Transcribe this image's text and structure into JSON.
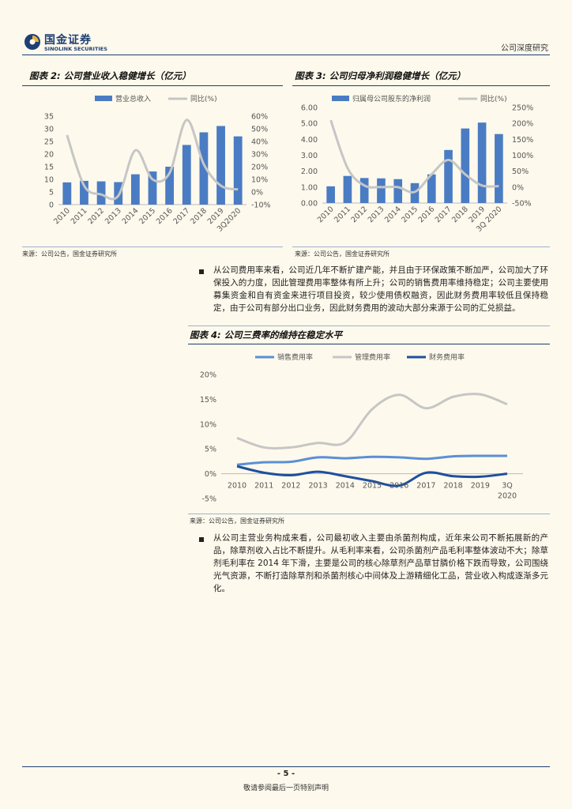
{
  "header": {
    "logo_cn": "国金证券",
    "logo_en": "SINOLINK SECURITIES",
    "right_text": "公司深度研究"
  },
  "fig2": {
    "title": "图表 2: 公司营业收入稳健增长（亿元）",
    "source": "来源：公司公告，国金证券研究所",
    "chart_data": {
      "type": "bar",
      "categories": [
        "2010",
        "2011",
        "2012",
        "2013",
        "2014",
        "2015",
        "2016",
        "2017",
        "2018",
        "2019",
        "3Q2020"
      ],
      "series": [
        {
          "name": "营业总收入",
          "kind": "bar",
          "axis": "left",
          "values": [
            8.8,
            9.4,
            9.2,
            8.9,
            12.0,
            13.1,
            15.0,
            23.6,
            28.6,
            31.1,
            27.0
          ]
        },
        {
          "name": "同比(%)",
          "kind": "line",
          "axis": "right",
          "values": [
            45,
            5,
            -2,
            -3,
            33,
            10,
            15,
            57,
            22,
            5,
            2
          ]
        }
      ],
      "ylim_left": [
        0,
        35
      ],
      "yticks_left": [
        "35",
        "30",
        "25",
        "20",
        "15",
        "10",
        "5",
        "0"
      ],
      "ylim_right": [
        -10,
        60
      ],
      "yticks_right": [
        "60%",
        "50%",
        "40%",
        "30%",
        "20%",
        "10%",
        "0%",
        "-10%"
      ],
      "colors": {
        "bar": "#4a7cc4",
        "line": "#c6c6c6"
      }
    }
  },
  "fig3": {
    "title": "图表 3: 公司归母净利润稳健增长（亿元）",
    "source": "来源：公司公告，国金证券研究所",
    "chart_data": {
      "type": "bar",
      "categories": [
        "2010",
        "2011",
        "2012",
        "2013",
        "2014",
        "2015",
        "2016",
        "2017",
        "2018",
        "2019",
        "3Q 2020"
      ],
      "series": [
        {
          "name": "归属母公司股东的净利润",
          "kind": "bar",
          "axis": "left",
          "values": [
            1.05,
            1.7,
            1.57,
            1.55,
            1.5,
            1.25,
            1.8,
            3.33,
            4.68,
            5.05,
            4.33
          ]
        },
        {
          "name": "同比(%)",
          "kind": "line",
          "axis": "right",
          "values": [
            210,
            60,
            5,
            0,
            0,
            -15,
            40,
            85,
            40,
            5,
            3
          ]
        }
      ],
      "ylim_left": [
        0,
        6
      ],
      "yticks_left": [
        "6.00",
        "5.00",
        "4.00",
        "3.00",
        "2.00",
        "1.00",
        "0.00"
      ],
      "ylim_right": [
        -50,
        250
      ],
      "yticks_right": [
        "250%",
        "200%",
        "150%",
        "100%",
        "50%",
        "0%",
        "-50%"
      ],
      "colors": {
        "bar": "#4a7cc4",
        "line": "#c6c6c6"
      }
    }
  },
  "bullet1": "从公司费用率来看，公司近几年不断扩建产能，并且由于环保政策不断加严，公司加大了环保投入的力度，因此管理费用率整体有所上升；公司的销售费用率维持稳定；公司主要使用募集资金和自有资金来进行项目投资，较少使用债权融资，因此财务费用率较低且保持稳定，由于公司有部分出口业务，因此财务费用的波动大部分来源于公司的汇兑损益。",
  "fig4": {
    "title": "图表 4: 公司三费率的维持在稳定水平",
    "source": "来源：公司公告，国金证券研究所",
    "chart_data": {
      "type": "line",
      "categories": [
        "2010",
        "2011",
        "2012",
        "2013",
        "2014",
        "2015",
        "2016",
        "2017",
        "2018",
        "2019",
        "3Q 2020"
      ],
      "series": [
        {
          "name": "销售费用率",
          "values": [
            1.8,
            2.3,
            2.4,
            3.3,
            3.1,
            3.4,
            3.3,
            3.0,
            3.5,
            3.6,
            3.6
          ]
        },
        {
          "name": "管理费用率",
          "values": [
            7.2,
            5.3,
            5.3,
            6.2,
            6.3,
            13.0,
            15.9,
            13.2,
            15.5,
            16.0,
            14.0
          ]
        },
        {
          "name": "财务费用率",
          "values": [
            1.5,
            0.2,
            -0.3,
            0.4,
            -0.5,
            -1.5,
            -2.4,
            0.2,
            -0.5,
            -0.6,
            0.0
          ]
        }
      ],
      "ylim": [
        -5,
        20
      ],
      "yticks": [
        "20%",
        "15%",
        "10%",
        "5%",
        "0%",
        "-5%"
      ],
      "colors": {
        "销售费用率": "#5b8fd6",
        "管理费用率": "#c6c6c6",
        "财务费用率": "#1f4f9e"
      }
    }
  },
  "bullet2": "从公司主营业务构成来看，公司最初收入主要由杀菌剂构成，近年来公司不断拓展新的产品，除草剂收入占比不断提升。从毛利率来看，公司杀菌剂产品毛利率整体波动不大；除草剂毛利率在 2014 年下滑，主要是公司的核心除草剂产品草甘膦价格下跌而导致，公司围绕光气资源，不断打造除草剂和杀菌剂核心中间体及上游精细化工品，营业收入构成逐渐多元化。",
  "footer": {
    "page": "- 5 -",
    "note": "敬请参阅最后一页特别声明"
  }
}
